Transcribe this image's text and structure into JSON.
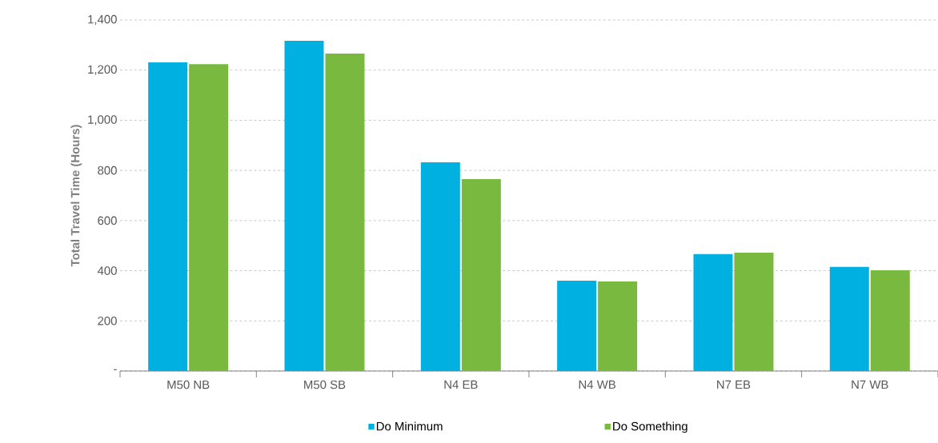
{
  "chart_data": {
    "type": "bar",
    "ylabel": "Total Travel Time (Hours)",
    "categories": [
      "M50 NB",
      "M50 SB",
      "N4 EB",
      "N4 WB",
      "N7 EB",
      "N7 WB"
    ],
    "series": [
      {
        "name": "Do Minimum",
        "color": "#00b0e0",
        "values": [
          1231,
          1317,
          832,
          360,
          466,
          415
        ]
      },
      {
        "name": "Do Something",
        "color": "#7ab940",
        "values": [
          1224,
          1266,
          765,
          357,
          472,
          402
        ]
      }
    ],
    "ylim": [
      0,
      1400
    ],
    "yticks": [
      {
        "value": 0,
        "label": "-"
      },
      {
        "value": 200,
        "label": "200"
      },
      {
        "value": 400,
        "label": "400"
      },
      {
        "value": 600,
        "label": "600"
      },
      {
        "value": 800,
        "label": "800"
      },
      {
        "value": 1000,
        "label": "1,000"
      },
      {
        "value": 1200,
        "label": "1,200"
      },
      {
        "value": 1400,
        "label": "1,400"
      }
    ],
    "grid": "y",
    "legend": "bottom"
  }
}
